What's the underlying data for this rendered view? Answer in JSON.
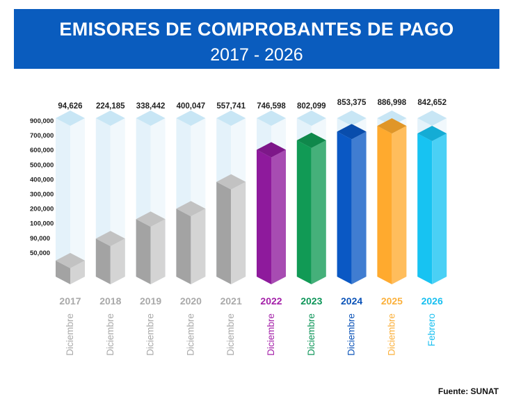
{
  "header": {
    "title": "EMISORES DE COMPROBANTES DE PAGO",
    "subtitle": "2017 - 2026",
    "background": "#0a5cbe"
  },
  "source": "Fuente: SUNAT",
  "chart_data": {
    "type": "bar",
    "title": "EMISORES DE COMPROBANTES DE PAGO",
    "subtitle": "2017 - 2026",
    "xlabel": "",
    "ylabel": "",
    "y_ticks": [
      "900,000",
      "700,000",
      "600,000",
      "500,000",
      "400,000",
      "300,000",
      "200,000",
      "100,000",
      "90,000",
      "50,000"
    ],
    "y_scale_note": "non-linear ordinal tick scale",
    "categories": [
      "2017",
      "2018",
      "2019",
      "2020",
      "2021",
      "2022",
      "2023",
      "2024",
      "2025",
      "2026"
    ],
    "months": [
      "Diciembre",
      "Diciembre",
      "Diciembre",
      "Diciembre",
      "Diciembre",
      "Diciembre",
      "Diciembre",
      "Diciembre",
      "Diciembre",
      "Febrero"
    ],
    "values": [
      94626,
      224185,
      338442,
      400047,
      557741,
      746598,
      802099,
      853375,
      886998,
      842652
    ],
    "value_labels": [
      "94,626",
      "224,185",
      "338,442",
      "400,047",
      "557,741",
      "746,598",
      "802,099",
      "853,375",
      "886,998",
      "842,652"
    ],
    "bar_colors": [
      "#a9a9a9",
      "#a9a9a9",
      "#a9a9a9",
      "#a9a9a9",
      "#a9a9a9",
      "#8e1a9c",
      "#119a55",
      "#0a58c4",
      "#ffaa2e",
      "#17c3f2"
    ],
    "label_colors": [
      "#a9a9a9",
      "#a9a9a9",
      "#a9a9a9",
      "#a9a9a9",
      "#a9a9a9",
      "#a31fa8",
      "#0d9558",
      "#0b53b8",
      "#fbb03b",
      "#17bff0"
    ]
  }
}
